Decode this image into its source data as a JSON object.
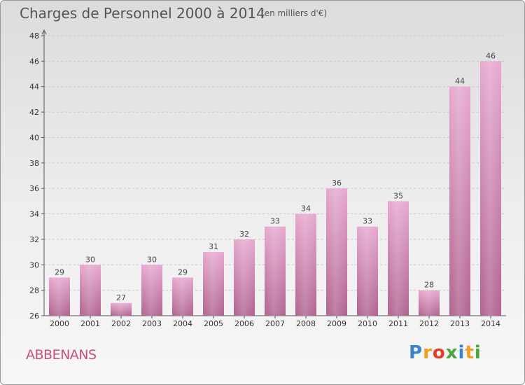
{
  "title": "Charges de Personnel 2000 à 2014",
  "subtitle": "(en milliers d'€)",
  "commune": "ABBENANS",
  "brand": {
    "letters": [
      "P",
      "r",
      "o",
      "x",
      "i",
      "t",
      "i"
    ],
    "colors": [
      "#3a86c8",
      "#f0a020",
      "#e0402a",
      "#4aa53a",
      "#3a86c8",
      "#f0a020",
      "#4aa53a"
    ]
  },
  "colors": {
    "bar_top": "#e6a8cf",
    "bar_bottom": "#b0638f",
    "label": "#c8507a"
  },
  "chart_data": {
    "type": "bar",
    "categories": [
      "2000",
      "2001",
      "2002",
      "2003",
      "2004",
      "2005",
      "2006",
      "2007",
      "2008",
      "2009",
      "2010",
      "2011",
      "2012",
      "2013",
      "2014"
    ],
    "values": [
      29,
      30,
      27,
      30,
      29,
      31,
      32,
      33,
      34,
      36,
      33,
      35,
      28,
      44,
      46
    ],
    "ylim": [
      26,
      48
    ],
    "yticks": [
      26,
      28,
      30,
      32,
      34,
      36,
      38,
      40,
      42,
      44,
      46,
      48
    ],
    "grid": true
  }
}
